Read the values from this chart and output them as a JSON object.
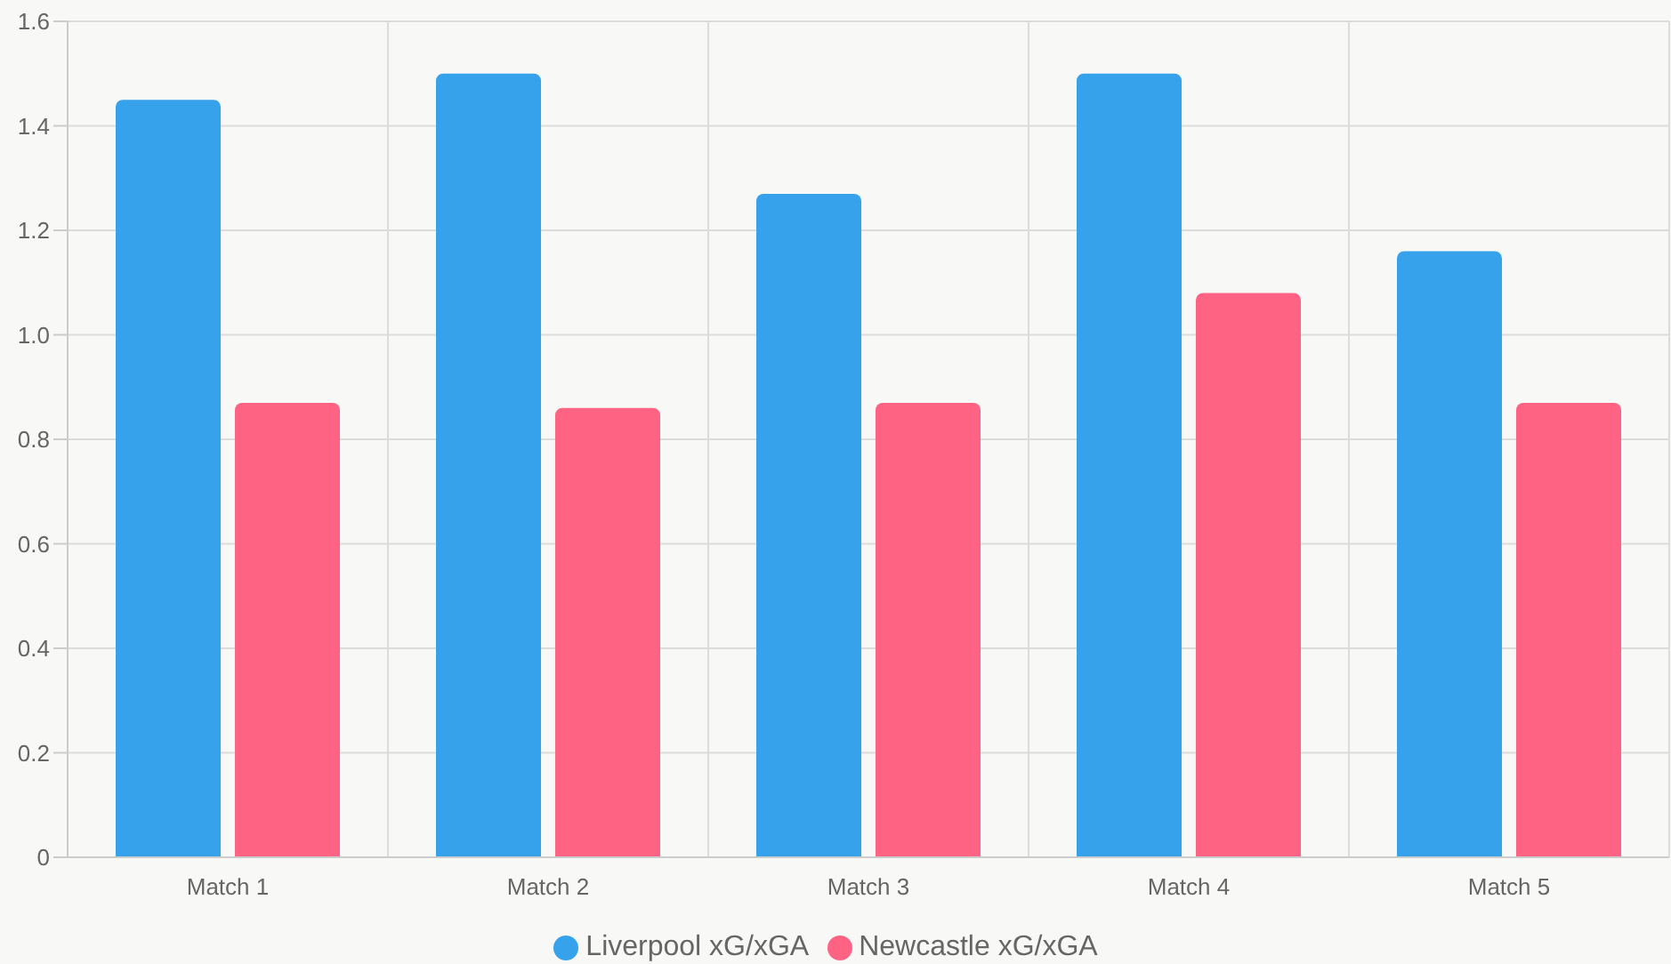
{
  "chart_data": {
    "type": "bar",
    "categories": [
      "Match 1",
      "Match 2",
      "Match 3",
      "Match 4",
      "Match 5"
    ],
    "series": [
      {
        "name": "Liverpool xG/xGA",
        "color": "#36a2eb",
        "values": [
          1.45,
          1.5,
          1.27,
          1.5,
          1.16
        ]
      },
      {
        "name": "Newcastle xG/xGA",
        "color": "#ff6384",
        "values": [
          0.87,
          0.86,
          0.87,
          1.08,
          0.87
        ]
      }
    ],
    "ylim": [
      0,
      1.6
    ],
    "yticks": [
      {
        "value": 0,
        "label": "0"
      },
      {
        "value": 0.2,
        "label": "0.2"
      },
      {
        "value": 0.4,
        "label": "0.4"
      },
      {
        "value": 0.6,
        "label": "0.6"
      },
      {
        "value": 0.8,
        "label": "0.8"
      },
      {
        "value": 1,
        "label": "1.0"
      },
      {
        "value": 1.2,
        "label": "1.2"
      },
      {
        "value": 1.4,
        "label": "1.4"
      },
      {
        "value": 1.6,
        "label": "1.6"
      }
    ],
    "grid": true,
    "legend": "bottom"
  }
}
